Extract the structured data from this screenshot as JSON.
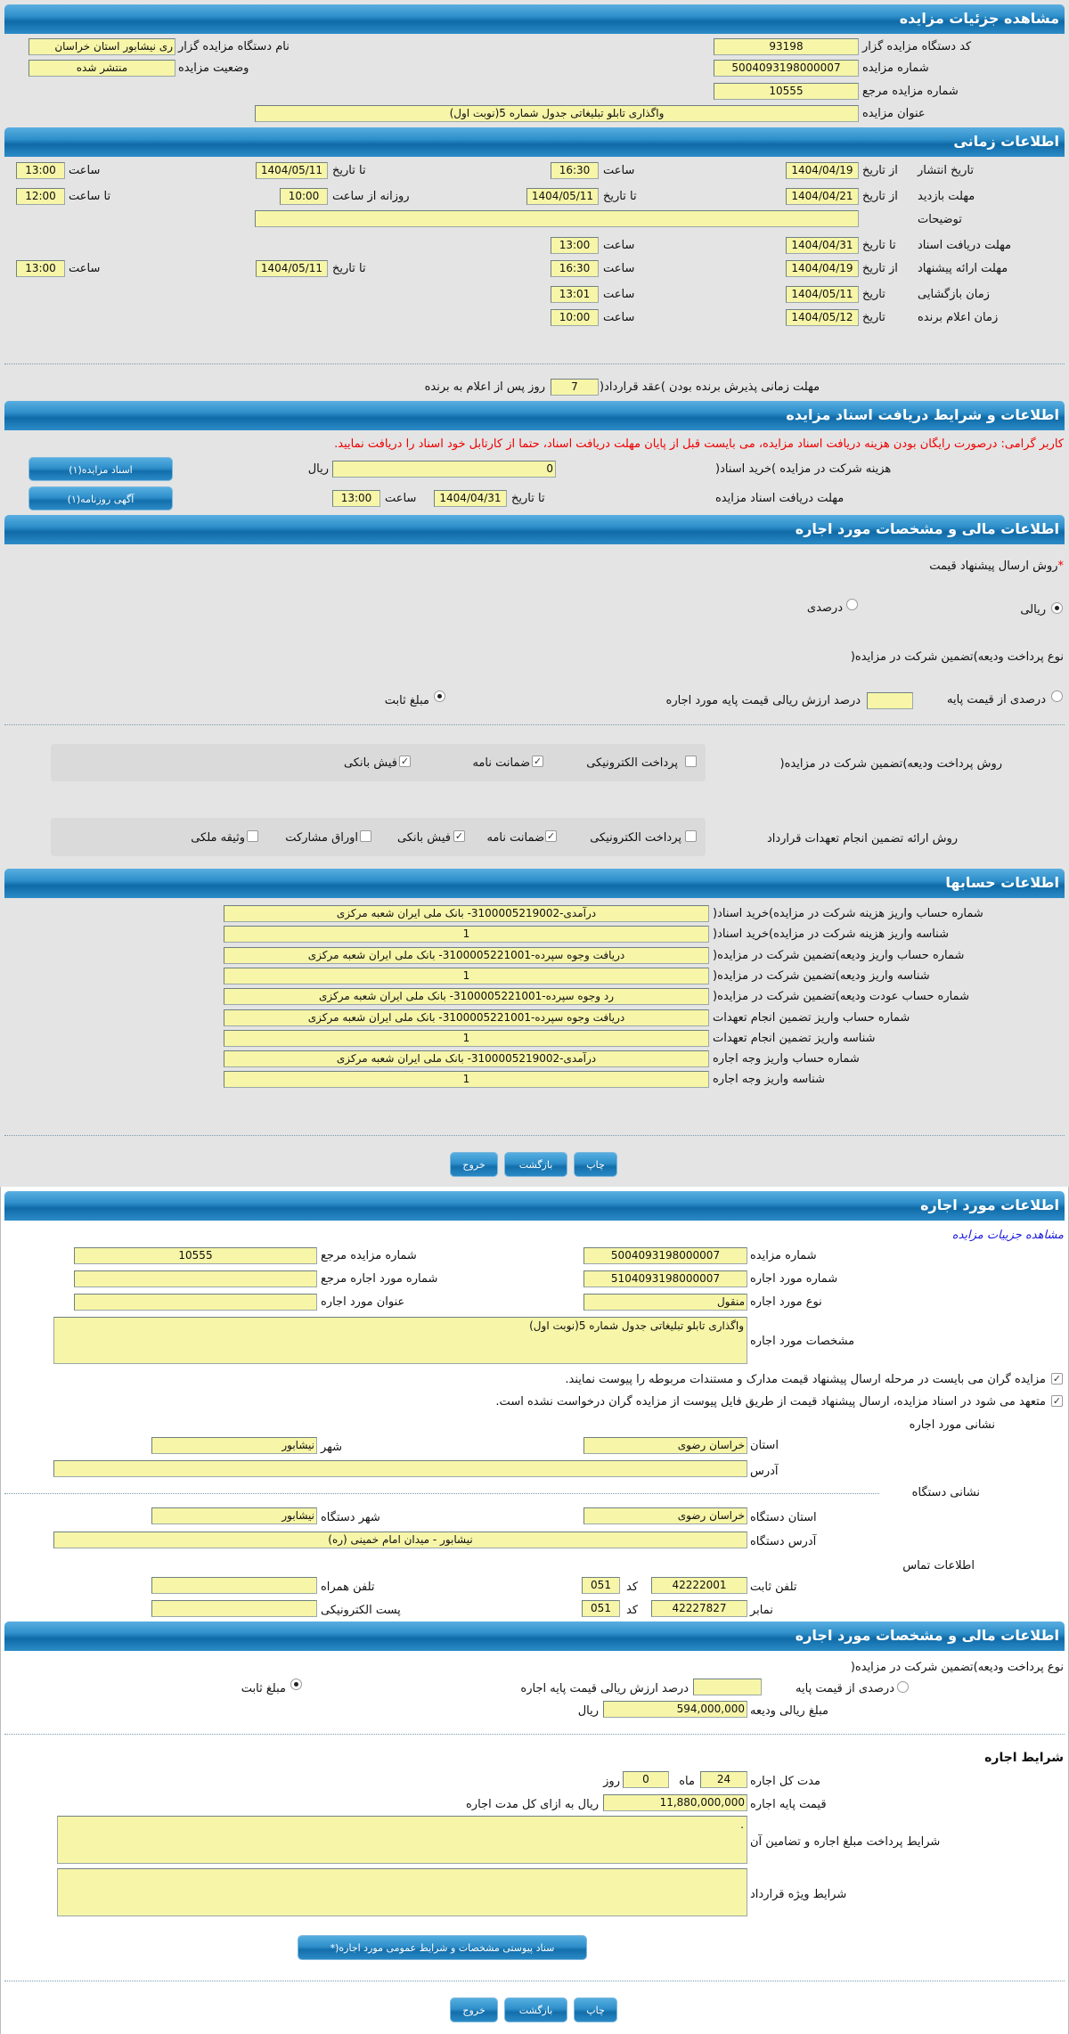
{
  "auction": {
    "title": "مشاهده جزئیات مزایده",
    "org_code_label": "کد دستگاه مزایده گزار",
    "org_code": "93198",
    "org_name_label": "نام دستگاه مزایده گزار",
    "org_name": "ری نیشابور استان خراسان",
    "auction_no_label": "شماره مزایده",
    "auction_no": "5004093198000007",
    "status_label": "وضعیت مزایده",
    "status": "منتشر شده",
    "ref_no_label": "شماره مزایده مرجع",
    "ref_no": "10555",
    "title_label": "عنوان مزایده",
    "title_value": "واگذاری تابلو تبلیغاتی جدول شماره 5(نوبت اول)"
  },
  "timing": {
    "title": "اطلاعات زمانی",
    "from_date": "از تاریخ",
    "to_date": "تا تاریخ",
    "date": "تاریخ",
    "hour": "ساعت",
    "to_hour": "تا ساعت",
    "daily_from_hour": "روزانه از ساعت",
    "description_label": "توضیحات",
    "description": "",
    "publish": {
      "label": "تاریخ انتشار",
      "from_date": "1404/04/19",
      "from_time": "16:30",
      "to_date": "1404/05/11",
      "to_time": "13:00"
    },
    "visit": {
      "label": "مهلت بازدید",
      "from_date": "1404/04/21",
      "to_date": "1404/05/11",
      "daily_from": "10:00",
      "daily_to": "12:00"
    },
    "docs_deadline": {
      "label": "مهلت دریافت اسناد",
      "to_date": "1404/04/31",
      "time": "13:00"
    },
    "offer": {
      "label": "مهلت ارائه پیشنهاد",
      "from_date": "1404/04/19",
      "from_time": "16:30",
      "to_date": "1404/05/11",
      "to_time": "13:00"
    },
    "opening": {
      "label": "زمان بازگشایی",
      "date": "1404/05/11",
      "time": "13:01"
    },
    "winner": {
      "label": "زمان اعلام برنده",
      "date": "1404/05/12",
      "time": "10:00"
    },
    "contract_label": "مهلت زمانی پذیرش برنده بودن )عقد قرارداد(",
    "contract_days": "7",
    "contract_suffix": "روز پس از اعلام به برنده"
  },
  "docs": {
    "title": "اطلاعات و شرایط دریافت اسناد مزایده",
    "notice": "کاربر گرامی: درصورت رایگان بودن هزینه دریافت اسناد مزایده، می بایست قبل از پایان مهلت دریافت اسناد، حتما از کارتابل خود اسناد را دریافت نمایید.",
    "fee_label": "هزینه شرکت در مزایده )خرید اسناد(",
    "fee": "0",
    "rial": "ریال",
    "deadline_label": "مهلت دریافت اسناد مزایده",
    "to_date_label": "تا تاریخ",
    "deadline_date": "1404/04/31",
    "hour_label": "ساعت",
    "deadline_time": "13:00",
    "docs_button": "اسناد مزایده(۱)",
    "ad_button": "آگهی روزنامه(۱)"
  },
  "financial": {
    "title": "اطلاعات مالی و مشخصات مورد اجاره",
    "price_method_label": "روش ارسال پیشنهاد قیمت",
    "required_mark": "*",
    "rial_option": "ریالی",
    "percent_option": "درصدی",
    "price_method_selected": "ریالی",
    "deposit_type_label": "نوع پرداخت ودیعه)تضمین شرکت در مزایده(",
    "percent_of_base": "درصدی از قیمت پایه",
    "percent_suffix": "درصد ارزش ریالی قیمت پایه مورد اجاره",
    "percent_value": "",
    "fixed_amount": "مبلغ ثابت",
    "deposit_type_selected": "مبلغ ثابت",
    "deposit_method_label": "روش پرداخت ودیعه)تضمین شرکت در مزایده(",
    "deposit_methods": [
      {
        "label": "پرداخت الکترونیکی",
        "checked": false
      },
      {
        "label": "ضمانت نامه",
        "checked": true
      },
      {
        "label": "فیش بانکی",
        "checked": true
      }
    ],
    "guarantee_label": "روش ارائه تضمین انجام تعهدات قرارداد",
    "guarantee_methods": [
      {
        "label": "پرداخت الکترونیکی",
        "checked": false
      },
      {
        "label": "ضمانت نامه",
        "checked": true
      },
      {
        "label": "فیش بانکی",
        "checked": true
      },
      {
        "label": "اوراق مشارکت",
        "checked": false
      },
      {
        "label": "وثیقه ملکی",
        "checked": false
      }
    ]
  },
  "accounts": {
    "title": "اطلاعات حسابها",
    "rows": [
      {
        "label": "شماره حساب واریز هزینه شرکت در مزایده)خرید اسناد(",
        "value": "درآمدی-3100005219002- بانک ملی ایران شعبه مرکزی"
      },
      {
        "label": "شناسه واریز هزینه شرکت در مزایده)خرید اسناد(",
        "value": "1"
      },
      {
        "label": "شماره حساب واریز ودیعه)تضمین شرکت در مزایده(",
        "value": "دریافت وجوه سپرده-3100005221001- بانک ملی ایران شعبه مرکزی"
      },
      {
        "label": "شناسه واریز ودیعه)تضمین شرکت در مزایده(",
        "value": "1"
      },
      {
        "label": "شماره حساب عودت ودیعه)تضمین شرکت در مزایده(",
        "value": "رد وجوه سپرده-3100005221001- بانک ملی ایران شعبه مرکزی"
      },
      {
        "label": "شماره حساب واریز تضمین انجام تعهدات",
        "value": "دریافت وجوه سپرده-3100005221001- بانک ملی ایران شعبه مرکزی"
      },
      {
        "label": "شناسه واریز تضمین انجام تعهدات",
        "value": "1"
      },
      {
        "label": "شماره حساب واریز وجه اجاره",
        "value": "درآمدی-3100005219002- بانک ملی ایران شعبه مرکزی"
      },
      {
        "label": "شناسه واریز وجه اجاره",
        "value": "1"
      }
    ]
  },
  "actions": {
    "print": "چاپ",
    "back": "بازگشت",
    "exit": "خروج"
  },
  "lease": {
    "title": "اطلاعات مورد اجاره",
    "details_link": "مشاهده جزییات مزایده",
    "auction_no_label": "شماره مزایده",
    "auction_no": "5004093198000007",
    "ref_no_label": "شماره مزایده مرجع",
    "ref_no": "10555",
    "item_no_label": "شماره مورد اجاره",
    "item_no": "5104093198000007",
    "item_ref_label": "شماره مورد اجاره مرجع",
    "item_ref": "",
    "type_label": "نوع مورد اجاره",
    "type": "منقول",
    "item_title_label": "عنوان مورد اجاره",
    "item_title": "",
    "specs_label": "مشخصات مورد اجاره",
    "specs": "واگذاری تابلو تبلیغاتی جدول شماره 5(نوبت اول)",
    "confirm1": "مزایده گران می بایست در مرحله ارسال پیشنهاد قیمت مدارک و مستندات مربوطه را پیوست نمایند.",
    "confirm2": "متعهد می شود در اسناد مزایده، ارسال پیشنهاد قیمت از طریق فایل پیوست از مزایده گران درخواست نشده است.",
    "address_title": "نشانی مورد اجاره",
    "province_label": "استان",
    "province": "خراسان رضوی",
    "city_label": "شهر",
    "city": "نیشابور",
    "address_label": "آدرس",
    "address": "",
    "org_address_title": "نشانی دستگاه",
    "org_province_label": "استان دستگاه",
    "org_province": "خراسان رضوی",
    "org_city_label": "شهر دستگاه",
    "org_city": "نیشابور",
    "org_address_label": "آدرس دستگاه",
    "org_address": "نیشابور - میدان امام خمینی (ره)",
    "contact_title": "اطلاعات تماس",
    "phone_label": "تلفن ثابت",
    "phone": "42222001",
    "code_label": "کد",
    "phone_code": "051",
    "fax_label": "نمابر",
    "fax": "42227827",
    "fax_code": "051",
    "mobile_label": "تلفن همراه",
    "mobile": "",
    "email_label": "پست الکترونیکی",
    "email": ""
  },
  "lease_financial": {
    "title": "اطلاعات مالی و مشخصات مورد اجاره",
    "deposit_type_label": "نوع پرداخت ودیعه)تضمین شرکت در مزایده(",
    "percent_of_base": "درصدی از قیمت پایه",
    "percent_suffix": "درصد ارزش ریالی قیمت پایه اجاره",
    "percent_value": "",
    "fixed_amount": "مبلغ ثابت",
    "deposit_amount_label": "مبلغ ریالی ودیعه",
    "deposit_amount": "594,000,000",
    "rial": "ریال",
    "terms_title": "شرایط اجاره",
    "duration_label": "مدت کل اجاره",
    "months": "24",
    "month_label": "ماه",
    "days": "0",
    "day_label": "روز",
    "base_price_label": "قیمت پایه اجاره",
    "base_price": "11,880,000,000",
    "base_price_suffix": "ریال به ازای کل مدت اجاره",
    "payment_terms_label": "شرایط پرداخت مبلغ اجاره و تضامین آن",
    "payment_terms": ".",
    "special_terms_label": "شرایط ویژه قرارداد",
    "special_terms": "",
    "attachment_button": "سناد پیوستی مشخصات و شرایط عمومی مورد اجاره(*"
  }
}
